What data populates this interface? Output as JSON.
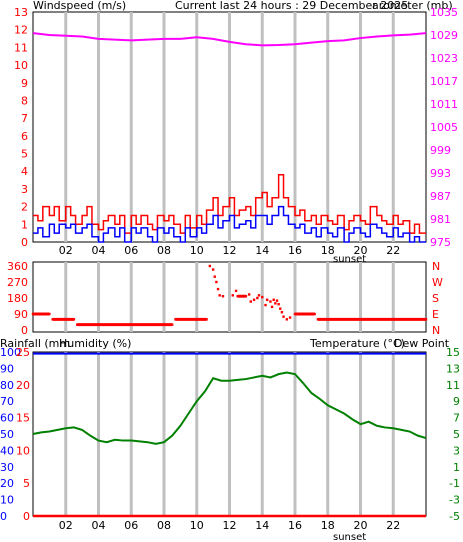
{
  "header": {
    "left_label": "Windspeed (m/s)",
    "center_label": "Current last 24 hours : 29 December 2025",
    "right_label": "arometer (mb)"
  },
  "colors": {
    "wind": "#ff0000",
    "gust": "#ff0000",
    "avg": "#0000ff",
    "baro": "#ff00ff",
    "dir": "#ff0000",
    "rain": "#ff0000",
    "humidity": "#0000ff",
    "temp": "#008000",
    "dew": "#ff00ff",
    "grid": "#c0c0c0"
  },
  "chart_data": [
    {
      "type": "line",
      "id": "wind_baro",
      "x_ticks": [
        "02",
        "04",
        "06",
        "08",
        "10",
        "12",
        "14",
        "16",
        "18",
        "20",
        "22"
      ],
      "x_annotation": "sunset",
      "ylim_left": [
        0,
        13
      ],
      "y_ticks_left": [
        "0",
        "1",
        "2",
        "3",
        "4",
        "5",
        "6",
        "7",
        "8",
        "9",
        "10",
        "11",
        "12",
        "13"
      ],
      "ylim_right": [
        975,
        1035
      ],
      "y_ticks_right": [
        "975",
        "981",
        "987",
        "993",
        "999",
        "1005",
        "1011",
        "1017",
        "1023",
        "1029",
        "1035"
      ],
      "grid": true,
      "series": [
        {
          "key": "gust",
          "axis": "left",
          "x": [
            0.0,
            0.3,
            0.6,
            1.0,
            1.3,
            1.6,
            2.0,
            2.3,
            2.6,
            3.0,
            3.3,
            3.6,
            4.0,
            4.3,
            4.6,
            5.0,
            5.3,
            5.6,
            6.0,
            6.3,
            6.6,
            7.0,
            7.3,
            7.6,
            8.0,
            8.3,
            8.6,
            9.0,
            9.3,
            9.6,
            10.0,
            10.3,
            10.6,
            11.0,
            11.3,
            11.6,
            12.0,
            12.3,
            12.6,
            13.0,
            13.3,
            13.6,
            14.0,
            14.3,
            14.6,
            15.0,
            15.3,
            15.6,
            16.0,
            16.3,
            16.6,
            17.0,
            17.3,
            17.6,
            18.0,
            18.3,
            18.6,
            19.0,
            19.3,
            19.6,
            20.0,
            20.3,
            20.6,
            21.0,
            21.3,
            21.6,
            22.0,
            22.3,
            22.6,
            23.0,
            23.3,
            23.6
          ],
          "values": [
            1.5,
            1.2,
            2.0,
            1.5,
            2.0,
            1.2,
            2.0,
            1.5,
            1.0,
            1.5,
            2.0,
            1.0,
            0.7,
            1.2,
            1.5,
            1.0,
            1.5,
            0.5,
            1.5,
            1.0,
            1.5,
            1.0,
            0.7,
            1.5,
            1.2,
            1.5,
            1.0,
            0.5,
            1.5,
            0.8,
            1.5,
            1.0,
            1.8,
            2.5,
            1.5,
            2.0,
            2.5,
            1.5,
            1.8,
            2.0,
            1.5,
            2.5,
            2.8,
            2.0,
            2.5,
            3.8,
            2.5,
            2.0,
            1.5,
            1.8,
            1.2,
            1.5,
            1.0,
            1.5,
            1.2,
            1.0,
            1.5,
            0.7,
            1.2,
            1.5,
            1.2,
            1.0,
            2.0,
            1.5,
            1.2,
            1.0,
            1.5,
            1.0,
            1.2,
            0.5,
            1.0,
            0.5
          ]
        },
        {
          "key": "avg",
          "axis": "left",
          "x": [
            0.0,
            0.3,
            0.6,
            1.0,
            1.3,
            1.6,
            2.0,
            2.3,
            2.6,
            3.0,
            3.3,
            3.6,
            4.0,
            4.3,
            4.6,
            5.0,
            5.3,
            5.6,
            6.0,
            6.3,
            6.6,
            7.0,
            7.3,
            7.6,
            8.0,
            8.3,
            8.6,
            9.0,
            9.3,
            9.6,
            10.0,
            10.3,
            10.6,
            11.0,
            11.3,
            11.6,
            12.0,
            12.3,
            12.6,
            13.0,
            13.3,
            13.6,
            14.0,
            14.3,
            14.6,
            15.0,
            15.3,
            15.6,
            16.0,
            16.3,
            16.6,
            17.0,
            17.3,
            17.6,
            18.0,
            18.3,
            18.6,
            19.0,
            19.3,
            19.6,
            20.0,
            20.3,
            20.6,
            21.0,
            21.3,
            21.6,
            22.0,
            22.3,
            22.6,
            23.0,
            23.3,
            23.6
          ],
          "values": [
            0.5,
            0.8,
            0.3,
            1.0,
            0.5,
            1.0,
            0.8,
            1.0,
            0.5,
            0.8,
            1.0,
            0.3,
            0.0,
            0.5,
            0.8,
            0.3,
            0.8,
            0.0,
            0.8,
            0.5,
            0.8,
            0.3,
            0.0,
            0.8,
            0.5,
            0.8,
            0.3,
            0.0,
            0.8,
            0.3,
            0.8,
            0.5,
            1.0,
            1.5,
            0.8,
            1.2,
            1.5,
            0.8,
            1.0,
            1.2,
            0.8,
            1.5,
            1.5,
            1.0,
            1.5,
            2.0,
            1.5,
            1.0,
            0.8,
            1.0,
            0.5,
            0.8,
            0.3,
            0.8,
            0.5,
            0.3,
            0.8,
            0.0,
            0.5,
            0.8,
            0.5,
            0.3,
            1.0,
            0.8,
            0.5,
            0.3,
            0.8,
            0.3,
            0.5,
            0.0,
            0.3,
            0.0
          ]
        },
        {
          "key": "baro",
          "axis": "right",
          "x": [
            0,
            1,
            2,
            3,
            4,
            5,
            6,
            7,
            8,
            9,
            10,
            11,
            12,
            13,
            14,
            15,
            16,
            17,
            18,
            19,
            20,
            21,
            22,
            23,
            24
          ],
          "values": [
            1029.5,
            1029.0,
            1028.8,
            1028.6,
            1028.0,
            1027.8,
            1027.6,
            1027.8,
            1028.0,
            1028.0,
            1028.4,
            1028.0,
            1027.2,
            1026.6,
            1026.3,
            1026.4,
            1026.6,
            1027.0,
            1027.4,
            1027.6,
            1028.2,
            1028.6,
            1028.9,
            1029.1,
            1029.5
          ]
        }
      ]
    },
    {
      "type": "scatter",
      "id": "wind_direction",
      "ylim": [
        0,
        360
      ],
      "y_ticks_left": [
        "0",
        "90",
        "180",
        "270",
        "360"
      ],
      "y_ticks_right": [
        "N",
        "E",
        "S",
        "W",
        "N"
      ],
      "grid": true,
      "series": [
        {
          "key": "dir",
          "points": [
            [
              0,
              90
            ],
            [
              1.0,
              90
            ],
            [
              1.2,
              60
            ],
            [
              2.5,
              60
            ],
            [
              2.7,
              30
            ],
            [
              8.5,
              30
            ],
            [
              8.7,
              60
            ],
            [
              10.6,
              60
            ],
            [
              10.8,
              360
            ],
            [
              11.0,
              340
            ],
            [
              11.1,
              300
            ],
            [
              11.2,
              270
            ],
            [
              11.3,
              230
            ],
            [
              11.4,
              195
            ],
            [
              11.6,
              190
            ],
            [
              12.2,
              195
            ],
            [
              12.4,
              220
            ],
            [
              12.5,
              190
            ],
            [
              13.0,
              190
            ],
            [
              13.2,
              200
            ],
            [
              13.3,
              160
            ],
            [
              13.5,
              170
            ],
            [
              13.7,
              180
            ],
            [
              13.8,
              195
            ],
            [
              14.0,
              185
            ],
            [
              14.2,
              140
            ],
            [
              14.3,
              170
            ],
            [
              14.5,
              160
            ],
            [
              14.6,
              130
            ],
            [
              14.7,
              170
            ],
            [
              14.8,
              150
            ],
            [
              14.9,
              165
            ],
            [
              15.0,
              145
            ],
            [
              15.1,
              120
            ],
            [
              15.2,
              100
            ],
            [
              15.3,
              75
            ],
            [
              15.5,
              60
            ],
            [
              15.7,
              70
            ],
            [
              16.0,
              90
            ],
            [
              17.2,
              90
            ],
            [
              17.4,
              60
            ],
            [
              24,
              60
            ]
          ]
        }
      ]
    },
    {
      "type": "line",
      "id": "temp_hum_rain",
      "x_ticks": [
        "02",
        "04",
        "06",
        "08",
        "10",
        "12",
        "14",
        "16",
        "18",
        "20",
        "22"
      ],
      "x_annotation": "sunset",
      "legend": {
        "rain": "Rainfall (mm",
        "humidity": "Humidity (%)",
        "temp": "Temperature (°C)",
        "dew": "Dew Point"
      },
      "y_ticks_rain": [
        "0",
        "5",
        "10",
        "15",
        "20",
        "25"
      ],
      "y_ticks_humidity": [
        "0",
        "10",
        "20",
        "30",
        "40",
        "50",
        "60",
        "70",
        "80",
        "90",
        "100"
      ],
      "ylim_temp": [
        -5,
        15
      ],
      "y_ticks_temp": [
        "-5",
        "-3",
        "-1",
        "1",
        "3",
        "5",
        "7",
        "9",
        "11",
        "13",
        "15"
      ],
      "grid": true,
      "series": [
        {
          "key": "temp",
          "x": [
            0.0,
            0.5,
            1.0,
            1.5,
            2.0,
            2.5,
            3.0,
            3.5,
            4.0,
            4.5,
            5.0,
            5.5,
            6.0,
            6.5,
            7.0,
            7.5,
            8.0,
            8.5,
            9.0,
            9.5,
            10.0,
            10.5,
            11.0,
            11.5,
            12.0,
            12.5,
            13.0,
            13.5,
            14.0,
            14.5,
            15.0,
            15.5,
            16.0,
            16.5,
            17.0,
            17.5,
            18.0,
            18.5,
            19.0,
            19.5,
            20.0,
            20.5,
            21.0,
            21.5,
            22.0,
            22.5,
            23.0,
            23.5,
            24.0
          ],
          "values": [
            5.0,
            5.2,
            5.3,
            5.5,
            5.7,
            5.8,
            5.5,
            4.8,
            4.2,
            4.0,
            4.3,
            4.2,
            4.2,
            4.1,
            4.0,
            3.8,
            4.0,
            4.8,
            6.0,
            7.5,
            9.0,
            10.2,
            11.8,
            11.5,
            11.5,
            11.6,
            11.7,
            11.9,
            12.1,
            11.9,
            12.3,
            12.5,
            12.3,
            11.2,
            10.0,
            9.3,
            8.5,
            8.0,
            7.5,
            6.8,
            6.2,
            6.5,
            6.0,
            5.8,
            5.7,
            5.5,
            5.3,
            4.8,
            4.5
          ]
        },
        {
          "key": "humidity",
          "x": [
            0,
            24
          ],
          "values": [
            99,
            99
          ]
        },
        {
          "key": "rain",
          "x": [
            0,
            24
          ],
          "values": [
            0,
            0
          ]
        }
      ]
    }
  ]
}
